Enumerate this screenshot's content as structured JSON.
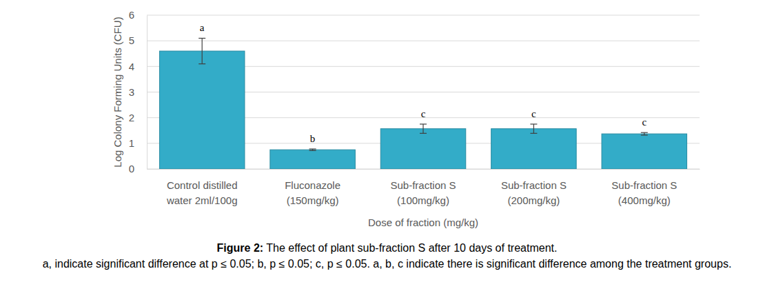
{
  "chart_data": {
    "type": "bar",
    "categories": [
      "Control distilled\nwater 2ml/100g",
      "Fluconazole\n(150mg/kg)",
      "Sub-fraction S\n(100mg/kg)",
      "Sub-fraction S\n(200mg/kg)",
      "Sub-fraction S\n(400mg/kg)"
    ],
    "values": [
      4.6,
      0.75,
      1.57,
      1.57,
      1.37
    ],
    "errors": [
      0.5,
      0.03,
      0.18,
      0.18,
      0.05
    ],
    "annotations": [
      "a",
      "b",
      "c",
      "c",
      "c"
    ],
    "color": "#33acc8",
    "x_label": "Dose of fraction (mg/kg)",
    "y_label": "Log Colony Forming Units (CFU)",
    "ylim": [
      0,
      6
    ],
    "yticks": [
      0,
      1,
      2,
      3,
      4,
      5,
      6
    ],
    "grid": true,
    "caption_label": "Figure 2:",
    "caption": "The effect of plant sub-fraction S after 10 days of treatment.",
    "note": "a, indicate significant difference at p ≤ 0.05; b, p ≤ 0.05; c, p ≤ 0.05. a, b, c indicate there is significant difference among the treatment groups."
  }
}
